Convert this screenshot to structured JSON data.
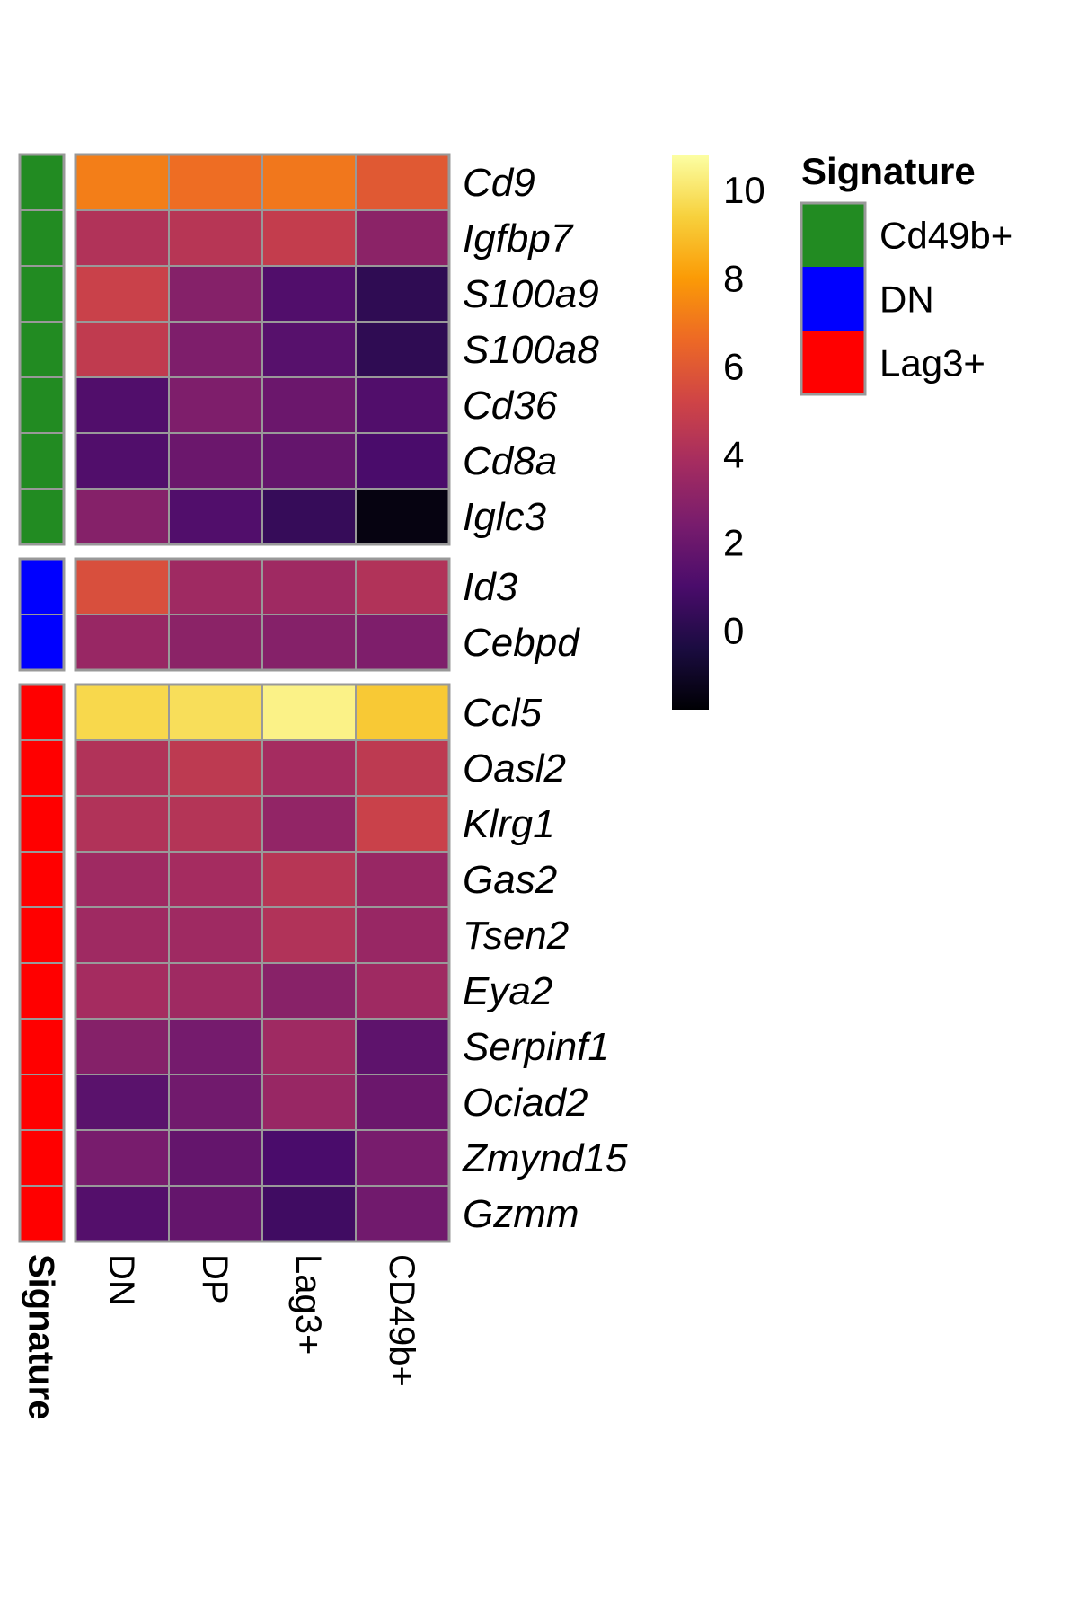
{
  "chart_data": {
    "type": "heatmap",
    "columns": [
      "DN",
      "DP",
      "Lag3+",
      "CD49b+"
    ],
    "signature_axis_label": "Signature",
    "groups": [
      {
        "signature": "Cd49b+",
        "rows": [
          {
            "gene": "Cd9",
            "values": [
              7.2,
              6.7,
              7.0,
              6.0
            ]
          },
          {
            "gene": "Igfbp7",
            "values": [
              4.2,
              4.4,
              4.8,
              3.0
            ]
          },
          {
            "gene": "S100a9",
            "values": [
              5.0,
              2.8,
              1.2,
              0.2
            ]
          },
          {
            "gene": "S100a8",
            "values": [
              4.7,
              2.6,
              1.4,
              0.2
            ]
          },
          {
            "gene": "Cd36",
            "values": [
              1.2,
              2.6,
              2.0,
              1.2
            ]
          },
          {
            "gene": "Cd8a",
            "values": [
              1.2,
              2.0,
              1.8,
              1.0
            ]
          },
          {
            "gene": "Iglc3",
            "values": [
              2.8,
              1.2,
              0.4,
              -1.5
            ]
          }
        ]
      },
      {
        "signature": "DN",
        "rows": [
          {
            "gene": "Id3",
            "values": [
              5.6,
              3.6,
              3.6,
              4.2
            ]
          },
          {
            "gene": "Cebpd",
            "values": [
              3.4,
              3.0,
              2.8,
              2.6
            ]
          }
        ]
      },
      {
        "signature": "Lag3+",
        "rows": [
          {
            "gene": "Ccl5",
            "values": [
              9.6,
              9.8,
              10.4,
              9.2
            ]
          },
          {
            "gene": "Oasl2",
            "values": [
              4.2,
              4.6,
              3.8,
              4.6
            ]
          },
          {
            "gene": "Klrg1",
            "values": [
              4.2,
              4.3,
              3.2,
              5.0
            ]
          },
          {
            "gene": "Gas2",
            "values": [
              3.6,
              3.8,
              4.4,
              3.4
            ]
          },
          {
            "gene": "Tsen2",
            "values": [
              3.6,
              3.6,
              4.2,
              3.4
            ]
          },
          {
            "gene": "Eya2",
            "values": [
              3.8,
              3.6,
              2.9,
              3.6
            ]
          },
          {
            "gene": "Serpinf1",
            "values": [
              2.8,
              2.3,
              3.6,
              1.6
            ]
          },
          {
            "gene": "Ociad2",
            "values": [
              1.5,
              2.2,
              3.4,
              2.0
            ]
          },
          {
            "gene": "Zmynd15",
            "values": [
              2.4,
              1.8,
              1.0,
              2.4
            ]
          },
          {
            "gene": "Gzmm",
            "values": [
              1.3,
              1.8,
              0.7,
              2.2
            ]
          }
        ]
      }
    ],
    "colorbar": {
      "ticks": [
        0,
        2,
        4,
        6,
        8,
        10
      ],
      "tick_labels": [
        "0",
        "2",
        "4",
        "6",
        "8",
        "10"
      ],
      "min": -1.8,
      "max": 10.8,
      "colormap": "inferno-like",
      "stops": [
        "#000004",
        "#1b0c41",
        "#4a0c6b",
        "#781c6d",
        "#a52c60",
        "#cf4446",
        "#ed6925",
        "#fb9b06",
        "#f7d13d",
        "#fcffa4"
      ]
    },
    "legend": {
      "title": "Signature",
      "items": [
        {
          "label": "Cd49b+",
          "color": "#228b22"
        },
        {
          "label": "DN",
          "color": "#0000ff"
        },
        {
          "label": "Lag3+",
          "color": "#ff0000"
        }
      ]
    },
    "grid_color": "#999999"
  }
}
